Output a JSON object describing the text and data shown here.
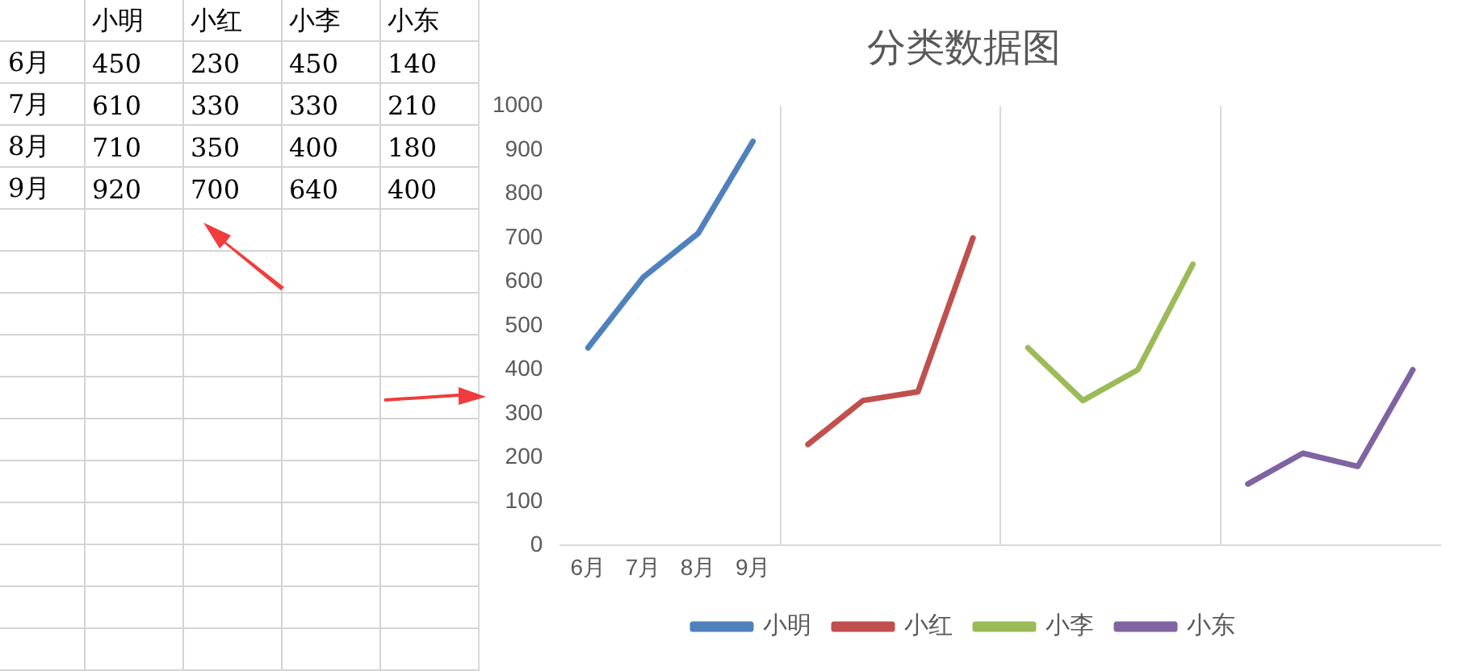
{
  "chart_data": [
    {
      "type": "heatmap",
      "data_labels": true,
      "categories": [
        "小明",
        "小红",
        "小李",
        "小东"
      ],
      "y_categories": [
        "6月",
        "7月",
        "8月",
        "9月"
      ],
      "cells": [
        [
          450,
          230,
          450,
          140
        ],
        [
          610,
          330,
          330,
          210
        ],
        [
          710,
          350,
          400,
          180
        ],
        [
          920,
          700,
          640,
          400
        ]
      ]
    },
    {
      "type": "line",
      "title": "分类数据图",
      "categories": [
        "6月",
        "7月",
        "8月",
        "9月",
        null,
        null,
        null,
        null,
        null,
        null,
        null,
        null,
        null,
        null,
        null,
        null
      ],
      "series": [
        {
          "name": "小明",
          "color": "#4f81bd",
          "values": [
            450,
            610,
            710,
            920,
            null,
            null,
            null,
            null,
            null,
            null,
            null,
            null,
            null,
            null,
            null,
            null
          ]
        },
        {
          "name": "小红",
          "color": "#c0504d",
          "values": [
            null,
            null,
            null,
            null,
            230,
            330,
            350,
            700,
            null,
            null,
            null,
            null,
            null,
            null,
            null,
            null
          ]
        },
        {
          "name": "小李",
          "color": "#9bbb59",
          "values": [
            null,
            null,
            null,
            null,
            null,
            null,
            null,
            null,
            450,
            330,
            400,
            640,
            null,
            null,
            null,
            null
          ]
        },
        {
          "name": "小东",
          "color": "#8064a2",
          "values": [
            null,
            null,
            null,
            null,
            null,
            null,
            null,
            null,
            null,
            null,
            null,
            null,
            140,
            210,
            180,
            400
          ]
        }
      ],
      "ylim": [
        0,
        1000
      ],
      "yticks": [
        0,
        100,
        200,
        300,
        400,
        500,
        600,
        700,
        800,
        900,
        1000
      ],
      "grid": "x",
      "legend": "bottom",
      "marker": "none",
      "line_style": "solid"
    }
  ]
}
